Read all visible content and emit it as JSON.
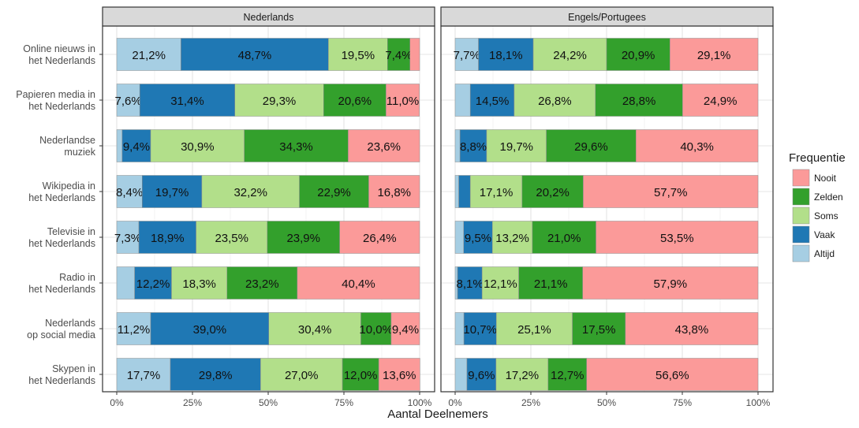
{
  "chart_data": {
    "type": "bar",
    "orientation": "horizontal",
    "stacked": true,
    "xlabel": "Aantal Deelnemers",
    "ylabel": "",
    "xlim": [
      0,
      100
    ],
    "x_ticks": [
      "0%",
      "25%",
      "50%",
      "75%",
      "100%"
    ],
    "grid": true,
    "legend_position": "right",
    "legend": {
      "title": "Frequentie",
      "items": [
        {
          "key": "nooit",
          "label": "Nooit",
          "color": "#fb9a99"
        },
        {
          "key": "zelden",
          "label": "Zelden",
          "color": "#33a02c"
        },
        {
          "key": "soms",
          "label": "Soms",
          "color": "#b2df8a"
        },
        {
          "key": "vaak",
          "label": "Vaak",
          "color": "#1f78b4"
        },
        {
          "key": "altijd",
          "label": "Altijd",
          "color": "#a6cee3"
        }
      ]
    },
    "stack_order": [
      "altijd",
      "vaak",
      "soms",
      "zelden",
      "nooit"
    ],
    "categories": [
      [
        "Online nieuws in",
        "het Nederlands"
      ],
      [
        "Papieren media in",
        "het Nederlands"
      ],
      [
        "Nederlandse",
        "muziek"
      ],
      [
        "Wikipedia in",
        "het Nederlands"
      ],
      [
        "Televisie in",
        "het Nederlands"
      ],
      [
        "Radio in",
        "het Nederlands"
      ],
      [
        "Nederlands",
        "op social media"
      ],
      [
        "Skypen in",
        "het Nederlands"
      ]
    ],
    "panels": [
      {
        "title": "Nederlands",
        "rows": [
          {
            "values": [
              21.2,
              48.7,
              19.5,
              7.4,
              3.2
            ],
            "labels": [
              "21,2%",
              "48,7%",
              "19,5%",
              "7,4%",
              ""
            ]
          },
          {
            "values": [
              7.6,
              31.4,
              29.3,
              20.6,
              11.0
            ],
            "labels": [
              "7,6%",
              "31,4%",
              "29,3%",
              "20,6%",
              "11,0%"
            ]
          },
          {
            "values": [
              1.8,
              9.4,
              30.9,
              34.3,
              23.6
            ],
            "labels": [
              "",
              "9,4%",
              "30,9%",
              "34,3%",
              "23,6%"
            ]
          },
          {
            "values": [
              8.4,
              19.7,
              32.2,
              22.9,
              16.8
            ],
            "labels": [
              "8,4%",
              "19,7%",
              "32,2%",
              "22,9%",
              "16,8%"
            ]
          },
          {
            "values": [
              7.3,
              18.9,
              23.5,
              23.9,
              26.4
            ],
            "labels": [
              "7,3%",
              "18,9%",
              "23,5%",
              "23,9%",
              "26,4%"
            ]
          },
          {
            "values": [
              5.9,
              12.2,
              18.3,
              23.2,
              40.4
            ],
            "labels": [
              "",
              "12,2%",
              "18,3%",
              "23,2%",
              "40,4%"
            ]
          },
          {
            "values": [
              11.2,
              39.0,
              30.4,
              10.0,
              9.4
            ],
            "labels": [
              "11,2%",
              "39,0%",
              "30,4%",
              "10,0%",
              "9,4%"
            ]
          },
          {
            "values": [
              17.7,
              29.8,
              27.0,
              12.0,
              13.6
            ],
            "labels": [
              "17,7%",
              "29,8%",
              "27,0%",
              "12,0%",
              "13,6%"
            ]
          }
        ]
      },
      {
        "title": "Engels/Portugees",
        "rows": [
          {
            "values": [
              7.7,
              18.1,
              24.2,
              20.9,
              29.1
            ],
            "labels": [
              "7,7%",
              "18,1%",
              "24,2%",
              "20,9%",
              "29,1%"
            ]
          },
          {
            "values": [
              5.0,
              14.5,
              26.8,
              28.8,
              24.9
            ],
            "labels": [
              "",
              "14,5%",
              "26,8%",
              "28,8%",
              "24,9%"
            ]
          },
          {
            "values": [
              1.6,
              8.8,
              19.7,
              29.6,
              40.3
            ],
            "labels": [
              "",
              "8,8%",
              "19,7%",
              "29,6%",
              "40,3%"
            ]
          },
          {
            "values": [
              1.2,
              3.8,
              17.1,
              20.2,
              57.7
            ],
            "labels": [
              "",
              "",
              "17,1%",
              "20,2%",
              "57,7%"
            ]
          },
          {
            "values": [
              2.8,
              9.5,
              13.2,
              21.0,
              53.5
            ],
            "labels": [
              "",
              "9,5%",
              "13,2%",
              "21,0%",
              "53,5%"
            ]
          },
          {
            "values": [
              0.8,
              8.1,
              12.1,
              21.1,
              57.9
            ],
            "labels": [
              "",
              "8,1%",
              "12,1%",
              "21,1%",
              "57,9%"
            ]
          },
          {
            "values": [
              2.9,
              10.7,
              25.1,
              17.5,
              43.8
            ],
            "labels": [
              "",
              "10,7%",
              "25,1%",
              "17,5%",
              "43,8%"
            ]
          },
          {
            "values": [
              3.9,
              9.6,
              17.2,
              12.7,
              56.6
            ],
            "labels": [
              "",
              "9,6%",
              "17,2%",
              "12,7%",
              "56,6%"
            ]
          }
        ]
      }
    ]
  }
}
